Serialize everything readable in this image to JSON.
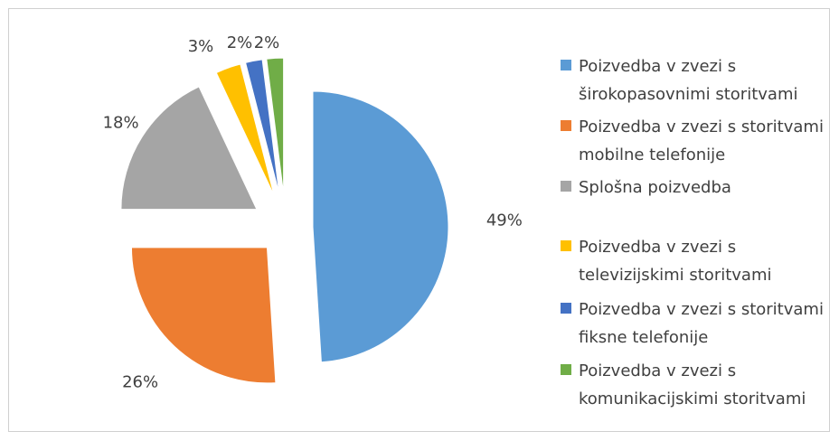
{
  "chart_data": {
    "type": "pie",
    "categories": [
      "Poizvedba v zvezi s širokopasovnimi storitvami",
      "Poizvedba v zvezi s storitvami mobilne telefonije",
      "Splošna poizvedba",
      "Poizvedba v zvezi s televizijskimi storitvami",
      "Poizvedba v zvezi s storitvami fiksne telefonije",
      "Poizvedba v zvezi s komunikacijskimi storitvami"
    ],
    "values": [
      49,
      26,
      18,
      3,
      2,
      2
    ],
    "value_labels": [
      "49%",
      "26%",
      "18%",
      "3%",
      "2%",
      "2%"
    ],
    "colors": [
      "#5b9bd5",
      "#ed7d31",
      "#a5a5a5",
      "#ffc000",
      "#4472c4",
      "#70ad47"
    ],
    "legend": "right"
  }
}
